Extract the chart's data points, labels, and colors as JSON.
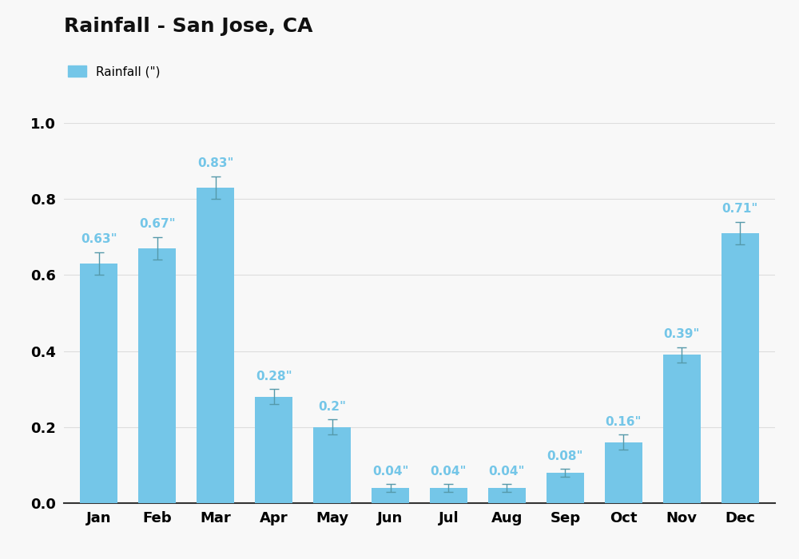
{
  "title": "Rainfall - San Jose, CA",
  "months": [
    "Jan",
    "Feb",
    "Mar",
    "Apr",
    "May",
    "Jun",
    "Jul",
    "Aug",
    "Sep",
    "Oct",
    "Nov",
    "Dec"
  ],
  "values": [
    0.63,
    0.67,
    0.83,
    0.28,
    0.2,
    0.04,
    0.04,
    0.04,
    0.08,
    0.16,
    0.39,
    0.71
  ],
  "errors": [
    0.03,
    0.03,
    0.03,
    0.02,
    0.02,
    0.01,
    0.01,
    0.01,
    0.01,
    0.02,
    0.02,
    0.03
  ],
  "labels": [
    "0.63\"",
    "0.67\"",
    "0.83\"",
    "0.28\"",
    "0.2\"",
    "0.04\"",
    "0.04\"",
    "0.04\"",
    "0.08\"",
    "0.16\"",
    "0.39\"",
    "0.71\""
  ],
  "bar_color": "#74C6E8",
  "errorbar_color": "#5599AA",
  "label_color": "#74C6E8",
  "background_color": "#F8F8F8",
  "legend_label": "Rainfall (\")",
  "ylim": [
    0,
    1.0
  ],
  "yticks": [
    0.0,
    0.2,
    0.4,
    0.6,
    0.8,
    1.0
  ],
  "title_fontsize": 18,
  "label_fontsize": 11,
  "tick_fontsize": 13,
  "grid_color": "#DDDDDD"
}
